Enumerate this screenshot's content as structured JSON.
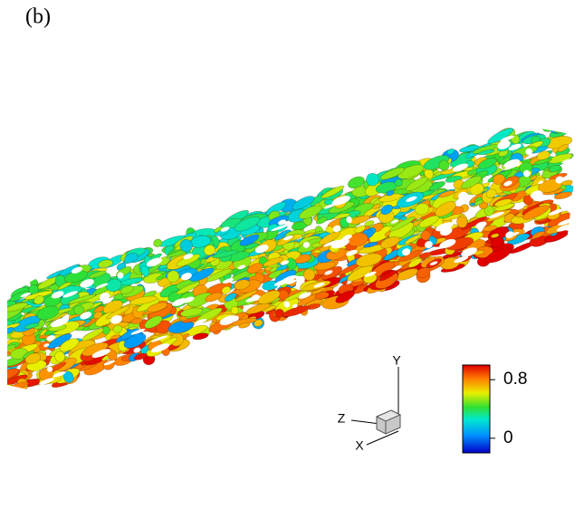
{
  "chart_data": {
    "type": "isosurface",
    "title": "(b)",
    "colorbar": {
      "clim": [
        -0.2,
        1.0
      ],
      "ticks": [
        0,
        0.8
      ]
    },
    "axis_labels": {
      "x": "X",
      "y": "Y",
      "z": "Z"
    }
  }
}
